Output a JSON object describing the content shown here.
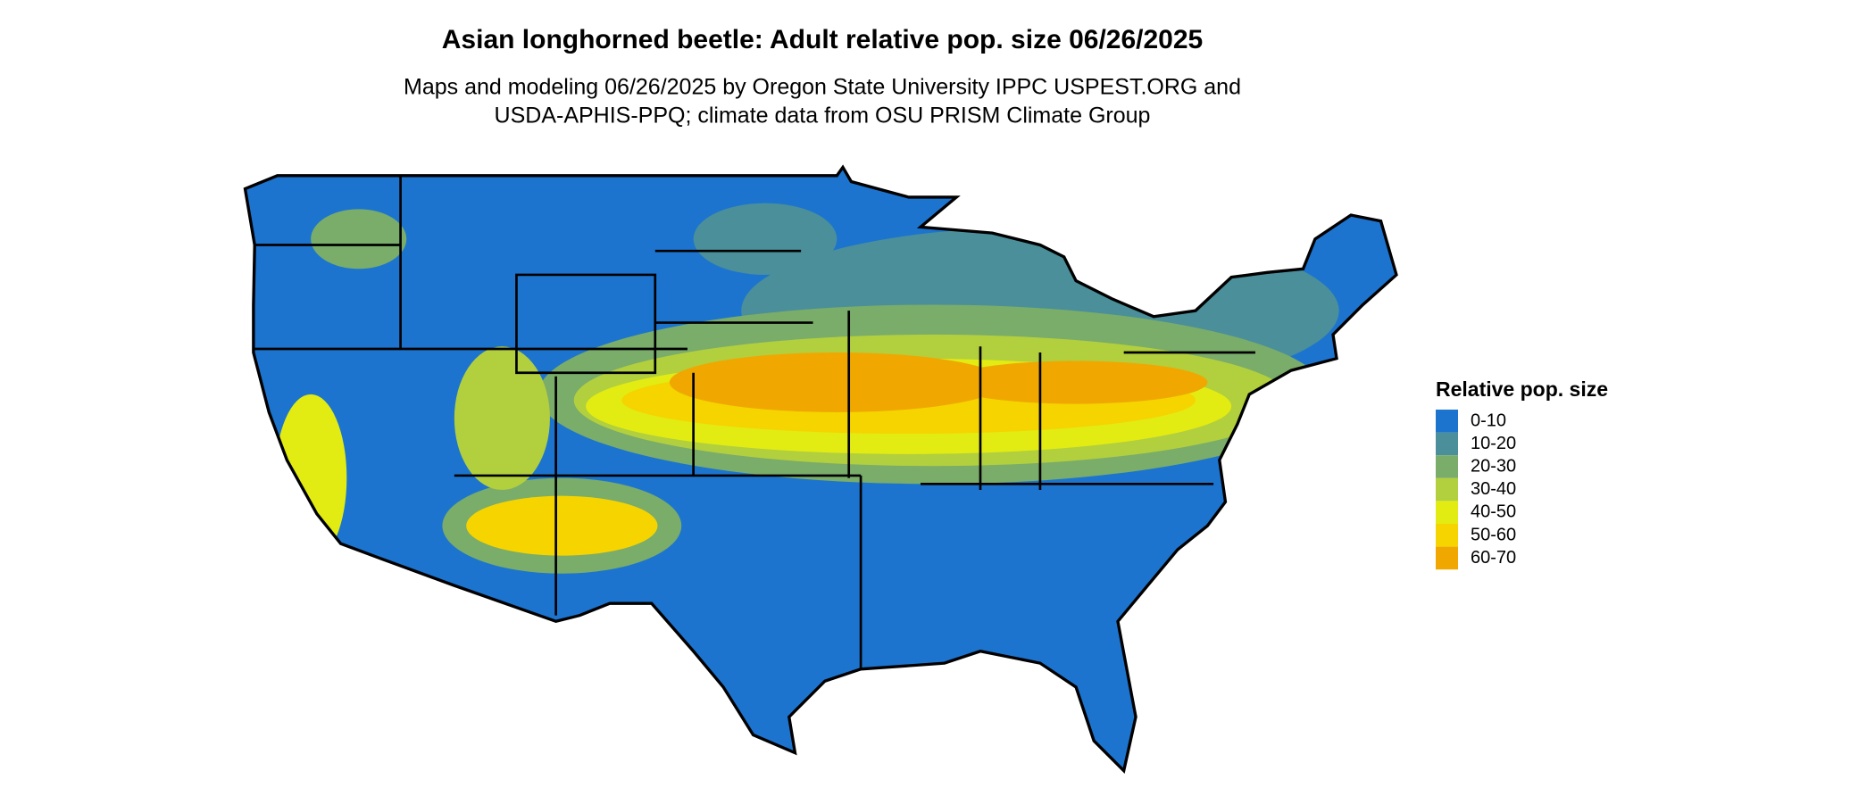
{
  "title": "Asian longhorned beetle: Adult relative pop. size 06/26/2025",
  "subtitle": [
    "Maps and modeling 06/26/2025 by Oregon State University IPPC USPEST.ORG and",
    "USDA-APHIS-PPQ; climate data from OSU PRISM Climate Group"
  ],
  "legend": {
    "title": "Relative pop. size",
    "items": [
      {
        "label": "0-10",
        "color": "#1c74cf"
      },
      {
        "label": "10-20",
        "color": "#4a8f9a"
      },
      {
        "label": "20-30",
        "color": "#7aac6a"
      },
      {
        "label": "30-40",
        "color": "#b2cf3e"
      },
      {
        "label": "40-50",
        "color": "#e2ec12"
      },
      {
        "label": "50-60",
        "color": "#f5d400"
      },
      {
        "label": "60-70",
        "color": "#f0a800"
      }
    ]
  }
}
